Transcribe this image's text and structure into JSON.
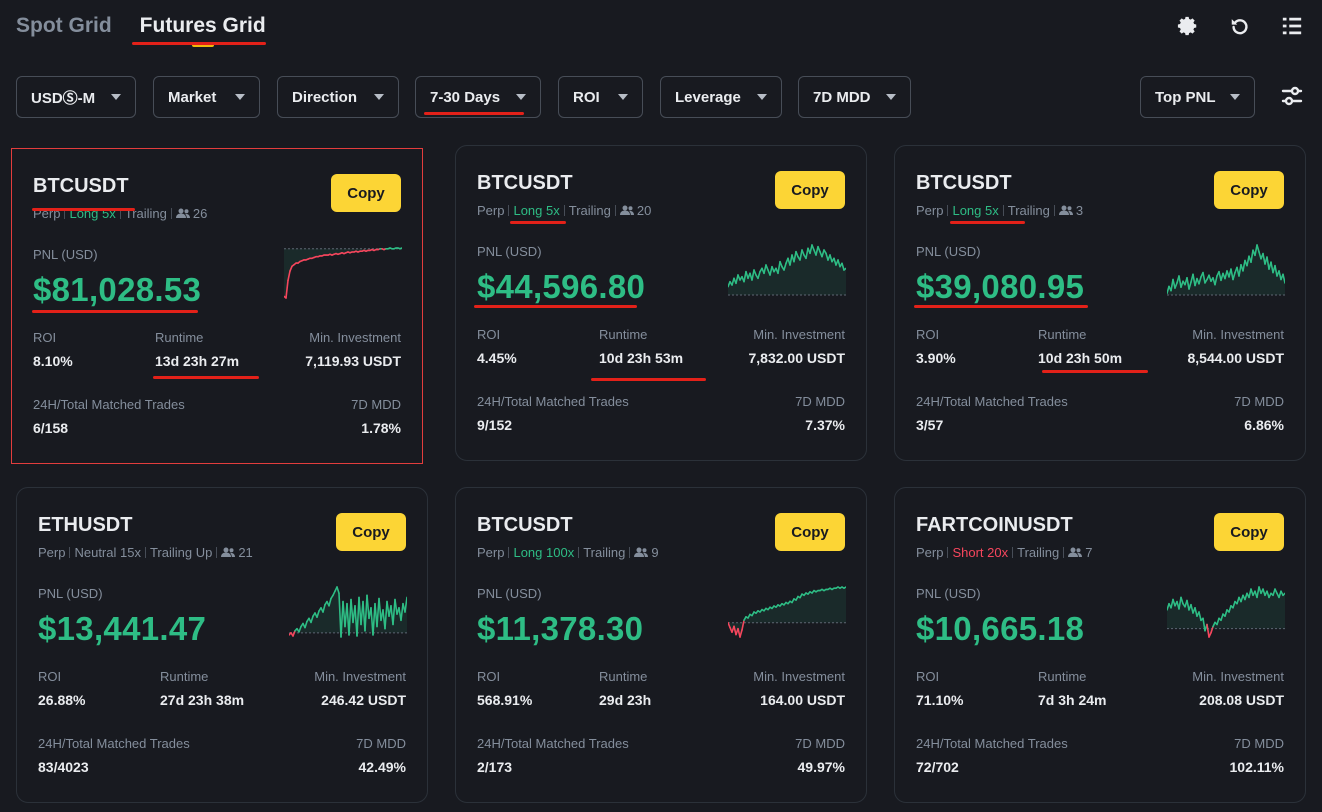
{
  "tabs": [
    {
      "label": "Spot Grid",
      "active": false
    },
    {
      "label": "Futures Grid",
      "active": true
    }
  ],
  "top_icons": [
    "gear-icon",
    "refresh-icon",
    "list-icon"
  ],
  "filters": [
    {
      "label": "USDⓈ-M"
    },
    {
      "label": "Market"
    },
    {
      "label": "Direction"
    },
    {
      "label": "7-30 Days"
    },
    {
      "label": "ROI"
    },
    {
      "label": "Leverage"
    },
    {
      "label": "7D MDD"
    },
    {
      "label": "Top PNL"
    }
  ],
  "labels": {
    "pnl": "PNL (USD)",
    "roi": "ROI",
    "runtime": "Runtime",
    "min_investment": "Min. Investment",
    "trades": "24H/Total Matched Trades",
    "mdd": "7D MDD",
    "copy": "Copy",
    "perp": "Perp"
  },
  "colors": {
    "green": "#2ebd85",
    "red": "#f6465d",
    "yellow": "#fcd535",
    "background": "#181a20",
    "annotation": "#e32119"
  },
  "cards": [
    {
      "symbol": "BTCUSDT",
      "direction": "Long 5x",
      "direction_type": "long",
      "mode": "Trailing",
      "users": "26",
      "pnl": "$81,028.53",
      "roi": "8.10%",
      "runtime": "13d 23h 27m",
      "min_investment": "7,119.93 USDT",
      "trades": "6/158",
      "mdd": "1.78%",
      "chart": [
        -60,
        -62,
        -40,
        -28,
        -22,
        -20,
        -18,
        -18,
        -16,
        -15,
        -14,
        -14,
        -13,
        -12,
        -12,
        -11,
        -10,
        -10,
        -9,
        -9,
        -8,
        -8,
        -8,
        -7,
        -8,
        -7,
        -6,
        -7,
        -6,
        -5,
        -6,
        -5,
        -4,
        -5,
        -4,
        -4,
        -3,
        -4,
        -3,
        -3,
        -2,
        -3,
        -2,
        -2,
        -1,
        -2,
        -1,
        -1,
        0,
        0,
        -1,
        0,
        0,
        1,
        0,
        0,
        1,
        1,
        0,
        1
      ]
    },
    {
      "symbol": "BTCUSDT",
      "direction": "Long 5x",
      "direction_type": "long",
      "mode": "Trailing",
      "users": "20",
      "pnl": "$44,596.80",
      "roi": "4.45%",
      "runtime": "10d 23h 53m",
      "min_investment": "7,832.00 USDT",
      "trades": "9/152",
      "mdd": "7.37%",
      "chart": [
        5,
        8,
        6,
        10,
        7,
        12,
        9,
        11,
        8,
        14,
        10,
        13,
        9,
        15,
        12,
        10,
        14,
        16,
        13,
        18,
        15,
        12,
        17,
        14,
        16,
        13,
        20,
        17,
        15,
        19,
        22,
        18,
        24,
        20,
        26,
        23,
        21,
        27,
        24,
        22,
        28,
        25,
        30,
        27,
        24,
        29,
        26,
        23,
        27,
        25,
        21,
        24,
        20,
        22,
        18,
        21,
        17,
        19,
        15,
        16
      ]
    },
    {
      "symbol": "BTCUSDT",
      "direction": "Long 5x",
      "direction_type": "long",
      "mode": "Trailing",
      "users": "3",
      "pnl": "$39,080.95",
      "roi": "3.90%",
      "runtime": "10d 23h 50m",
      "min_investment": "8,544.00 USDT",
      "trades": "3/57",
      "mdd": "6.86%",
      "chart": [
        2,
        10,
        5,
        18,
        8,
        14,
        22,
        9,
        16,
        12,
        20,
        7,
        15,
        24,
        11,
        19,
        13,
        21,
        26,
        14,
        18,
        23,
        16,
        20,
        12,
        22,
        27,
        17,
        25,
        19,
        28,
        21,
        30,
        18,
        26,
        32,
        22,
        35,
        28,
        40,
        34,
        45,
        38,
        52,
        46,
        58,
        50,
        42,
        48,
        36,
        44,
        30,
        38,
        26,
        34,
        22,
        28,
        18,
        24,
        14
      ]
    },
    {
      "symbol": "ETHUSDT",
      "direction": "Neutral 15x",
      "direction_type": "neutral",
      "mode": "Trailing Up",
      "users": "21",
      "pnl": "$13,441.47",
      "roi": "26.88%",
      "runtime": "27d 23h 38m",
      "min_investment": "246.42 USDT",
      "trades": "83/4023",
      "mdd": "42.49%",
      "chart": [
        -2,
        0,
        -3,
        2,
        4,
        1,
        6,
        9,
        5,
        11,
        14,
        10,
        16,
        19,
        15,
        21,
        24,
        20,
        27,
        30,
        26,
        33,
        36,
        40,
        44,
        38,
        -4,
        30,
        6,
        28,
        -2,
        32,
        10,
        26,
        -3,
        34,
        8,
        30,
        2,
        36,
        14,
        24,
        -2,
        28,
        6,
        33,
        12,
        22,
        4,
        30,
        16,
        26,
        8,
        32,
        18,
        24,
        12,
        28,
        20,
        34
      ]
    },
    {
      "symbol": "BTCUSDT",
      "direction": "Long 100x",
      "direction_type": "long",
      "mode": "Trailing",
      "users": "9",
      "pnl": "$11,378.30",
      "roi": "568.91%",
      "runtime": "29d 23h",
      "min_investment": "164.00 USDT",
      "trades": "2/173",
      "mdd": "49.97%",
      "chart": [
        0,
        -4,
        -8,
        -3,
        -10,
        -5,
        -12,
        -6,
        2,
        5,
        4,
        7,
        6,
        9,
        8,
        10,
        9,
        11,
        10,
        12,
        11,
        13,
        12,
        14,
        13,
        15,
        14,
        16,
        15,
        17,
        16,
        18,
        17,
        20,
        19,
        22,
        21,
        24,
        23,
        25,
        24,
        26,
        25,
        27,
        26,
        27,
        27,
        28,
        27,
        28,
        28,
        29,
        28,
        29,
        29,
        30,
        29,
        30,
        29,
        30
      ]
    },
    {
      "symbol": "FARTCOINUSDT",
      "direction": "Short 20x",
      "direction_type": "short",
      "mode": "Trailing",
      "users": "7",
      "pnl": "$10,665.18",
      "roi": "71.10%",
      "runtime": "7d 3h 24m",
      "min_investment": "208.08 USDT",
      "trades": "72/702",
      "mdd": "102.11%",
      "chart": [
        18,
        24,
        20,
        28,
        22,
        26,
        19,
        30,
        24,
        21,
        27,
        18,
        23,
        15,
        20,
        12,
        16,
        8,
        10,
        -2,
        4,
        -8,
        -4,
        2,
        6,
        4,
        10,
        8,
        14,
        12,
        18,
        16,
        22,
        20,
        26,
        24,
        30,
        26,
        32,
        28,
        34,
        30,
        38,
        32,
        36,
        30,
        40,
        34,
        38,
        32,
        36,
        30,
        34,
        32,
        38,
        34,
        30,
        36,
        32,
        34
      ]
    }
  ]
}
